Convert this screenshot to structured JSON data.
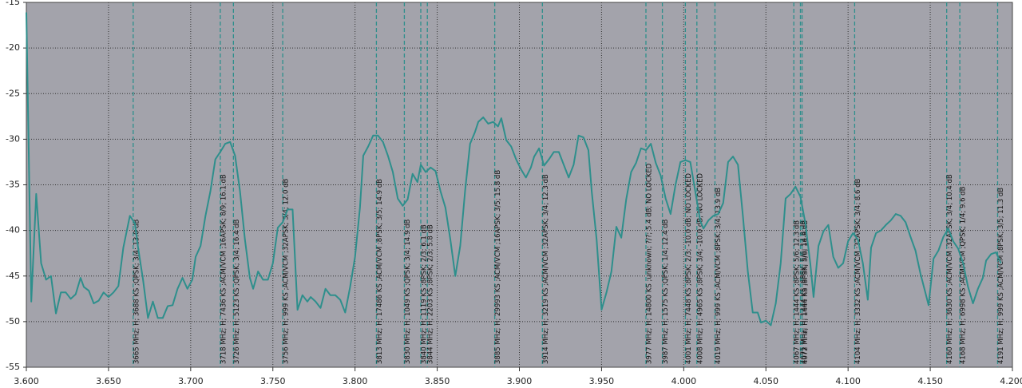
{
  "chart_data": {
    "type": "line",
    "xlim": [
      3.6,
      4.2
    ],
    "xticks": [
      {
        "value": 3.6,
        "label": "3.600"
      },
      {
        "value": 3.65,
        "label": "3.650"
      },
      {
        "value": 3.7,
        "label": "3.700"
      },
      {
        "value": 3.75,
        "label": "3.750"
      },
      {
        "value": 3.8,
        "label": "3.800"
      },
      {
        "value": 3.85,
        "label": "3.850"
      },
      {
        "value": 3.9,
        "label": "3.900"
      },
      {
        "value": 3.95,
        "label": "3.950"
      },
      {
        "value": 4.0,
        "label": "4.000"
      },
      {
        "value": 4.05,
        "label": "4.050"
      },
      {
        "value": 4.1,
        "label": "4.100"
      },
      {
        "value": 4.15,
        "label": "4.150"
      },
      {
        "value": 4.2,
        "label": "4.200"
      }
    ],
    "ylim": [
      -55,
      -15
    ],
    "yticks": [
      -15,
      -20,
      -25,
      -30,
      -35,
      -40,
      -45,
      -50,
      -55
    ],
    "grid": true,
    "x": [
      3.6,
      3.603,
      3.606,
      3.609,
      3.612,
      3.615,
      3.618,
      3.621,
      3.624,
      3.627,
      3.63,
      3.633,
      3.635,
      3.638,
      3.641,
      3.644,
      3.647,
      3.65,
      3.653,
      3.656,
      3.659,
      3.663,
      3.666,
      3.668,
      3.671,
      3.674,
      3.677,
      3.68,
      3.683,
      3.686,
      3.689,
      3.692,
      3.695,
      3.698,
      3.701,
      3.703,
      3.706,
      3.709,
      3.712,
      3.715,
      3.718,
      3.721,
      3.724,
      3.727,
      3.73,
      3.733,
      3.736,
      3.738,
      3.741,
      3.744,
      3.747,
      3.75,
      3.753,
      3.756,
      3.759,
      3.762,
      3.765,
      3.768,
      3.771,
      3.773,
      3.776,
      3.779,
      3.782,
      3.785,
      3.788,
      3.791,
      3.794,
      3.797,
      3.8,
      3.803,
      3.805,
      3.808,
      3.811,
      3.814,
      3.817,
      3.82,
      3.823,
      3.826,
      3.829,
      3.832,
      3.835,
      3.838,
      3.84,
      3.843,
      3.846,
      3.849,
      3.852,
      3.855,
      3.858,
      3.861,
      3.864,
      3.867,
      3.87,
      3.873,
      3.875,
      3.878,
      3.881,
      3.884,
      3.887,
      3.889,
      3.892,
      3.895,
      3.898,
      3.901,
      3.904,
      3.907,
      3.909,
      3.912,
      3.915,
      3.918,
      3.921,
      3.924,
      3.927,
      3.93,
      3.933,
      3.936,
      3.939,
      3.942,
      3.944,
      3.947,
      3.95,
      3.953,
      3.956,
      3.959,
      3.962,
      3.965,
      3.968,
      3.971,
      3.974,
      3.977,
      3.98,
      3.983,
      3.986,
      3.989,
      3.992,
      3.995,
      3.998,
      4.001,
      4.004,
      4.007,
      4.01,
      4.012,
      4.015,
      4.018,
      4.021,
      4.024,
      4.027,
      4.03,
      4.033,
      4.036,
      4.039,
      4.042,
      4.045,
      4.047,
      4.05,
      4.053,
      4.056,
      4.059,
      4.062,
      4.065,
      4.068,
      4.071,
      4.074,
      4.077,
      4.079,
      4.082,
      4.085,
      4.088,
      4.091,
      4.094,
      4.097,
      4.1,
      4.103,
      4.106,
      4.109,
      4.112,
      4.114,
      4.117,
      4.12,
      4.123,
      4.126,
      4.129,
      4.132,
      4.135,
      4.138,
      4.141,
      4.144,
      4.147,
      4.149,
      4.152,
      4.155,
      4.158,
      4.161,
      4.164,
      4.167,
      4.17,
      4.173,
      4.176,
      4.179,
      4.182,
      4.184,
      4.187,
      4.19,
      4.193
    ],
    "series": [
      {
        "color": "#2e8f8c",
        "values": [
          -16.1,
          -47.8,
          -36.0,
          -43.6,
          -45.4,
          -45.0,
          -49.1,
          -46.8,
          -46.8,
          -47.5,
          -47.0,
          -45.2,
          -46.2,
          -46.6,
          -48.0,
          -47.7,
          -46.8,
          -47.3,
          -46.8,
          -46.1,
          -41.9,
          -38.4,
          -39.2,
          -41.9,
          -45.4,
          -49.6,
          -47.8,
          -49.6,
          -49.6,
          -48.3,
          -48.2,
          -46.4,
          -45.2,
          -46.4,
          -45.4,
          -42.9,
          -41.7,
          -38.4,
          -35.7,
          -32.2,
          -31.4,
          -30.5,
          -30.3,
          -31.8,
          -35.7,
          -41.0,
          -45.2,
          -46.4,
          -44.5,
          -45.4,
          -45.4,
          -43.6,
          -39.7,
          -39.1,
          -37.7,
          -37.7,
          -48.7,
          -47.1,
          -47.8,
          -47.3,
          -47.8,
          -48.5,
          -46.4,
          -47.1,
          -47.1,
          -47.6,
          -49.0,
          -46.2,
          -42.9,
          -37.5,
          -31.8,
          -30.8,
          -29.6,
          -29.6,
          -30.3,
          -31.8,
          -33.6,
          -36.5,
          -37.3,
          -36.6,
          -33.8,
          -34.7,
          -32.8,
          -33.6,
          -33.1,
          -33.5,
          -35.7,
          -37.5,
          -41.0,
          -45.0,
          -41.7,
          -35.6,
          -30.5,
          -29.2,
          -28.1,
          -27.6,
          -28.3,
          -28.1,
          -28.6,
          -27.7,
          -30.1,
          -30.8,
          -32.2,
          -33.3,
          -34.2,
          -33.1,
          -31.9,
          -31.0,
          -32.9,
          -32.2,
          -31.4,
          -31.4,
          -32.8,
          -34.2,
          -32.8,
          -29.6,
          -29.8,
          -31.2,
          -35.7,
          -41.0,
          -48.7,
          -46.8,
          -44.5,
          -39.6,
          -40.8,
          -36.6,
          -33.6,
          -32.6,
          -31.0,
          -31.2,
          -30.5,
          -32.6,
          -34.0,
          -36.5,
          -38.2,
          -35.0,
          -32.5,
          -32.3,
          -32.5,
          -35.7,
          -38.9,
          -39.8,
          -38.9,
          -38.4,
          -38.2,
          -37.0,
          -32.5,
          -31.9,
          -32.8,
          -38.4,
          -44.5,
          -49.0,
          -49.0,
          -50.1,
          -49.9,
          -50.4,
          -48.0,
          -43.6,
          -36.5,
          -36.0,
          -35.2,
          -36.3,
          -39.2,
          -43.6,
          -47.3,
          -41.7,
          -40.1,
          -39.4,
          -42.9,
          -44.1,
          -43.6,
          -41.2,
          -40.3,
          -41.0,
          -43.6,
          -47.6,
          -41.9,
          -40.3,
          -40.0,
          -39.4,
          -38.9,
          -38.2,
          -38.4,
          -39.1,
          -40.7,
          -42.2,
          -44.7,
          -46.8,
          -48.2,
          -43.1,
          -42.2,
          -40.7,
          -39.8,
          -41.2,
          -42.0,
          -43.6,
          -46.2,
          -48.0,
          -46.4,
          -45.2,
          -43.3,
          -42.6,
          -42.4,
          -43.6
        ]
      }
    ],
    "markers": [
      {
        "x": 3.665,
        "label": "3665 MHz; H; 3688 KS ;QPSK; 3/4; 13.0 dB"
      },
      {
        "x": 3.718,
        "label": "3718 MHz; H; 7436 KS ;ACM/VCM ;16APSK; 8/9; 16.1 dB"
      },
      {
        "x": 3.726,
        "label": "3726 MHz; H; 5123 KS ;QPSK; 3/4; 16.4 dB"
      },
      {
        "x": 3.756,
        "label": "3756 MHz; H; 999 KS ;ACM/VCM ;32APSK; 3/4; 12.0 dB"
      },
      {
        "x": 3.813,
        "label": "3813 MHz; H; 17486 KS ;ACM/VCM ;8PSK; 3/5; 14.9 dB"
      },
      {
        "x": 3.83,
        "label": "3830 MHz; H; 1049 KS ;QPSK; 3/4; 14.9 dB"
      },
      {
        "x": 3.84,
        "label": "3840 MHz; H; 1119 KS ;8PSK; 2/3; 6.1 dB"
      },
      {
        "x": 3.844,
        "label": "3844 MHz; H; 2203 KS ;8PSK; 2/3; 5.8 dB"
      },
      {
        "x": 3.885,
        "label": "3885 MHz; H; 29993 KS ;ACM/VCM ;16APSK; 3/5; 15.8 dB"
      },
      {
        "x": 3.914,
        "label": "3914 MHz; H; 3219 KS ;ACM/VCM ;32APSK; 3/4; 12.3 dB"
      },
      {
        "x": 3.977,
        "label": "3977 MHz; H; 14800 KS ;unknown; ?/?; 5.4 dB; NO LOCKED"
      },
      {
        "x": 3.987,
        "label": "3987 MHz; H; 1575 KS ;QPSK; 1/4; 12.4 dB"
      },
      {
        "x": 4.001,
        "label": "4001 MHz; H; 7448 KS ;8PSK; 2/3; -10.0 dB; NO LOCKED"
      },
      {
        "x": 4.008,
        "label": "4008 MHz; H; 4965 KS ;8PSK; 3/4; -10.0 dB; NO LOCKED"
      },
      {
        "x": 4.019,
        "label": "4019 MHz; H; 999 KS ;ACM/VCM ;8PSK; 3/4; 13.9 dB"
      },
      {
        "x": 4.067,
        "label": "4067 MHz; H; 1444 KS ;8PSK; 5/6; 12.3 dB"
      },
      {
        "x": 4.071,
        "label": "4071 MHz; H; 1444 KS ;8PSK; 5/6; 14.8 dB"
      },
      {
        "x": 4.072,
        "label": "4072 MHz; H; 1444 KS ;8PSK; 5/6; 14.8 dB"
      },
      {
        "x": 4.104,
        "label": "4104 MHz; H; 3332 KS ;ACM/VCM ;32APSK; 3/4; 8.6 dB"
      },
      {
        "x": 4.16,
        "label": "4160 MHz; H; 3630 KS ;ACM/VCM ;32APSK; 3/4; 10.4 dB"
      },
      {
        "x": 4.168,
        "label": "4168 MHz; H; 6998 KS ;ACM/VCM ;QPSK; 1/4; 9.6 dB"
      },
      {
        "x": 4.191,
        "label": "4191 MHz; H; 999 KS ;ACM/VCM ;8PSK; 3/5; 11.3 dB"
      }
    ],
    "marker_color": "#2e8f8c"
  }
}
